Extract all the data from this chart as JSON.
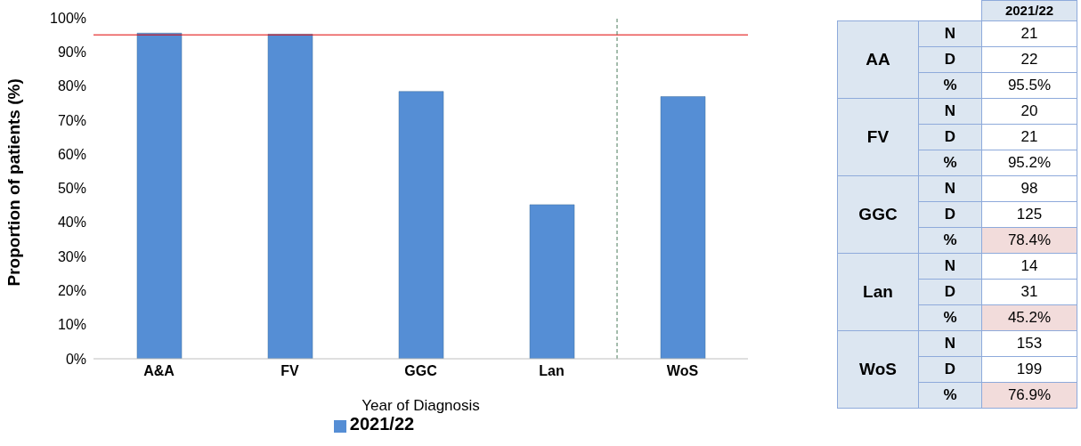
{
  "chart_data": [
    {
      "type": "bar",
      "categories": [
        "A&A",
        "FV",
        "GGC",
        "Lan",
        "WoS"
      ],
      "series": [
        {
          "name": "2021/22",
          "color": "#558ed5",
          "values": [
            95.5,
            95.2,
            78.4,
            45.2,
            76.9
          ]
        }
      ],
      "xlabel": "Year of Diagnosis",
      "ylabel": "Proportion of patients (%)",
      "ylim": [
        0,
        100
      ],
      "yticks": [
        {
          "value": 0,
          "label": "0%"
        },
        {
          "value": 10,
          "label": "10%"
        },
        {
          "value": 20,
          "label": "20%"
        },
        {
          "value": 30,
          "label": "30%"
        },
        {
          "value": 40,
          "label": "40%"
        },
        {
          "value": 50,
          "label": "50%"
        },
        {
          "value": 60,
          "label": "60%"
        },
        {
          "value": 70,
          "label": "70%"
        },
        {
          "value": 80,
          "label": "80%"
        },
        {
          "value": 90,
          "label": "90%"
        },
        {
          "value": 100,
          "label": "100%"
        }
      ],
      "ref_lines": [
        {
          "axis": "y",
          "value": 95,
          "color": "#e00000",
          "line_style": "solid"
        },
        {
          "axis": "x",
          "value": "WoS",
          "color": "#4a7a5a",
          "line_style": "dashed"
        }
      ],
      "grid": false,
      "legend": "bottom"
    },
    {
      "type": "heatmap",
      "categories": [
        "2021/22"
      ],
      "y_categories": [
        "N",
        "D",
        "%",
        "N",
        "D",
        "%",
        "N",
        "D",
        "%",
        "N",
        "D",
        "%",
        "N",
        "D",
        "%"
      ],
      "y2_categories": [
        null,
        "AA",
        null,
        null,
        "FV",
        null,
        null,
        "GGC",
        null,
        null,
        "Lan",
        null,
        null,
        "WoS",
        null
      ],
      "cells": [
        [
          21
        ],
        [
          22
        ],
        [
          95.5
        ],
        [
          20
        ],
        [
          21
        ],
        [
          95.2
        ],
        [
          98
        ],
        [
          125
        ],
        [
          78.4
        ],
        [
          14
        ],
        [
          31
        ],
        [
          45.2
        ],
        [
          153
        ],
        [
          199
        ],
        [
          76.9
        ]
      ],
      "cell_labels": [
        [
          "21"
        ],
        [
          "22"
        ],
        [
          "95.5%"
        ],
        [
          "20"
        ],
        [
          "21"
        ],
        [
          "95.2%"
        ],
        [
          "98"
        ],
        [
          "125"
        ],
        [
          "78.4%"
        ],
        [
          "14"
        ],
        [
          "31"
        ],
        [
          "45.2%"
        ],
        [
          "153"
        ],
        [
          "199"
        ],
        [
          "76.9%"
        ]
      ]
    }
  ]
}
